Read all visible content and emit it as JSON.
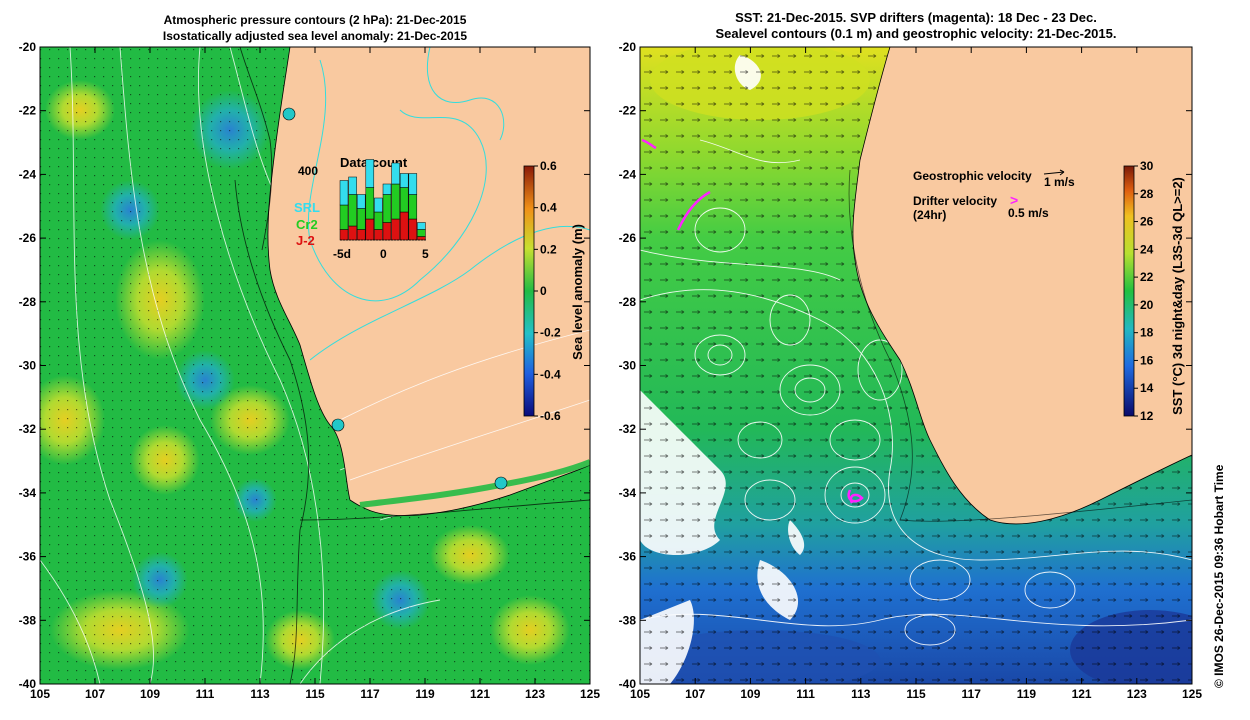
{
  "left_panel": {
    "title_line1": "Atmospheric pressure contours (2 hPa): 21-Dec-2015",
    "title_line2": "Isostatically adjusted sea level anomaly: 21-Dec-2015",
    "colorbar_label": "Sea level anomaly (m)",
    "colorbar_ticks": [
      "0.6",
      "0.4",
      "0.2",
      "0",
      "-0.2",
      "-0.4",
      "-0.6"
    ],
    "inset": {
      "title": "Data count",
      "ymax_label": "400",
      "legend": [
        {
          "label": "SRL",
          "color": "#33ddee"
        },
        {
          "label": "Cr2",
          "color": "#22cc22"
        },
        {
          "label": "J-2",
          "color": "#dd1111"
        }
      ],
      "xticks": [
        "-5d",
        "0",
        "5"
      ]
    }
  },
  "right_panel": {
    "title_line1": "SST: 21-Dec-2015. SVP drifters (magenta): 18 Dec - 23 Dec.",
    "title_line2": "Sealevel contours (0.1 m) and geostrophic velocity: 21-Dec-2015.",
    "colorbar_label": "SST (°C) 3d night&day (L3S-3d QL>=2)",
    "colorbar_ticks": [
      "30",
      "28",
      "26",
      "24",
      "22",
      "20",
      "18",
      "16",
      "14",
      "12"
    ],
    "geostrophic_label": "Geostrophic velocity",
    "geostrophic_scale": "1 m/s",
    "drifter_label_line1": "Drifter velocity",
    "drifter_label_line2": "(24hr)",
    "drifter_scale": "0.5 m/s",
    "drifter_color": "#ff22ff"
  },
  "axes": {
    "x_ticks": [
      "105",
      "107",
      "109",
      "111",
      "113",
      "115",
      "117",
      "119",
      "121",
      "123",
      "125"
    ],
    "y_ticks": [
      "-20",
      "-22",
      "-24",
      "-26",
      "-28",
      "-30",
      "-32",
      "-34",
      "-36",
      "-38",
      "-40"
    ]
  },
  "colors": {
    "land": "#f9c9a0",
    "sla_ocean": "#22bb44",
    "coastline": "#000000"
  },
  "copyright": "© IMOS 26-Dec-2015 09:36 Hobart Time"
}
